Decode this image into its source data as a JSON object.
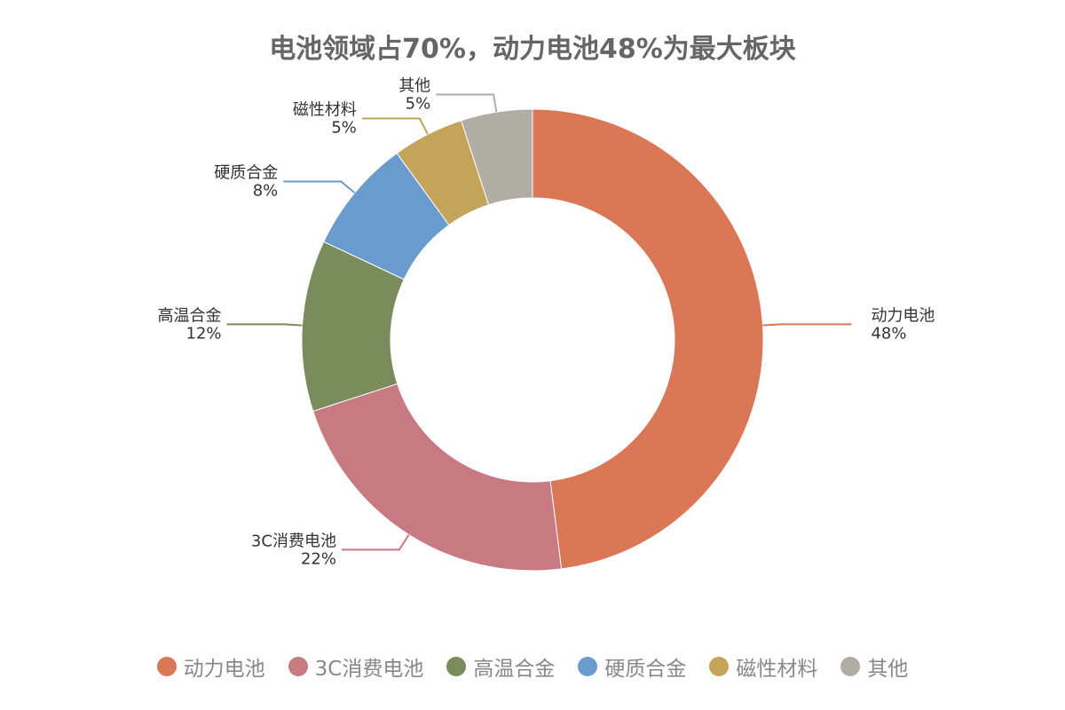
{
  "chart_data": {
    "type": "pie",
    "title": "电池领域占70%，动力电池48%为最大板块",
    "unit": "%",
    "categories": [
      "动力电池",
      "3C消费电池",
      "高温合金",
      "硬质合金",
      "磁性材料",
      "其他"
    ],
    "values": [
      48,
      22,
      12,
      8,
      5,
      5
    ],
    "value_labels": [
      "48%",
      "22%",
      "12%",
      "8%",
      "5%",
      "5%"
    ],
    "colors": [
      "#D97757",
      "#C87A83",
      "#7A8B5C",
      "#6A9BCD",
      "#C4A35A",
      "#B0ADA5"
    ],
    "legend": "bottom",
    "donut": true
  }
}
